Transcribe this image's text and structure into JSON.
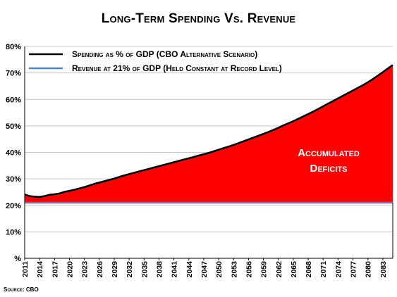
{
  "chart_data": {
    "type": "area",
    "title": "Long-Term Spending Vs. Revenue",
    "source": "Source: CBO",
    "ylim": [
      0,
      80
    ],
    "y_ticks": [
      0,
      10,
      20,
      30,
      40,
      50,
      60,
      70,
      80
    ],
    "y_tick_labels": [
      "%",
      "10%",
      "20%",
      "30%",
      "40%",
      "50%",
      "60%",
      "70%",
      "80%"
    ],
    "x_range": [
      2011,
      2085
    ],
    "x_tick_labels": [
      "2011",
      "2014",
      "2017",
      "2020",
      "2023",
      "2026",
      "2029",
      "2032",
      "2035",
      "2038",
      "2041",
      "2044",
      "2047",
      "2050",
      "2053",
      "2056",
      "2059",
      "2062",
      "2065",
      "2068",
      "2071",
      "2074",
      "2077",
      "2080",
      "2083"
    ],
    "grid": "horizontal",
    "legend_placement": "top-left",
    "series": [
      {
        "name": "Spending as % of GDP (CBO Alternative Scenario)",
        "color": "#000000",
        "x": [
          2011,
          2012,
          2013,
          2014,
          2015,
          2016,
          2017,
          2018,
          2019,
          2020,
          2021,
          2022,
          2023,
          2024,
          2025,
          2026,
          2027,
          2028,
          2029,
          2030,
          2031,
          2032,
          2033,
          2034,
          2035,
          2036,
          2037,
          2038,
          2039,
          2040,
          2041,
          2042,
          2043,
          2044,
          2045,
          2046,
          2047,
          2048,
          2049,
          2050,
          2051,
          2052,
          2053,
          2054,
          2055,
          2056,
          2057,
          2058,
          2059,
          2060,
          2061,
          2062,
          2063,
          2064,
          2065,
          2066,
          2067,
          2068,
          2069,
          2070,
          2071,
          2072,
          2073,
          2074,
          2075,
          2076,
          2077,
          2078,
          2079,
          2080,
          2081,
          2082,
          2083,
          2084,
          2085
        ],
        "values": [
          24.1,
          23.5,
          23.3,
          23.2,
          23.5,
          24.0,
          24.2,
          24.5,
          25.1,
          25.5,
          25.9,
          26.4,
          26.9,
          27.5,
          28.1,
          28.6,
          29.1,
          29.6,
          30.1,
          30.7,
          31.3,
          31.8,
          32.3,
          32.8,
          33.3,
          33.8,
          34.3,
          34.8,
          35.3,
          35.8,
          36.3,
          36.8,
          37.3,
          37.8,
          38.3,
          38.8,
          39.3,
          39.8,
          40.4,
          41.0,
          41.6,
          42.2,
          42.8,
          43.5,
          44.2,
          44.9,
          45.6,
          46.3,
          47.0,
          47.7,
          48.5,
          49.3,
          50.2,
          51.0,
          51.8,
          52.7,
          53.6,
          54.5,
          55.4,
          56.4,
          57.4,
          58.4,
          59.4,
          60.4,
          61.4,
          62.4,
          63.4,
          64.4,
          65.4,
          66.5,
          67.7,
          69.0,
          70.3,
          71.7,
          73.0
        ]
      },
      {
        "name": "Revenue at 21% of GDP (Held Constant at Record Level)",
        "color": "#4f81bd",
        "x": [
          2011,
          2085
        ],
        "values": [
          21,
          21
        ]
      }
    ],
    "annotations": [
      {
        "text_line1": "Accumulated",
        "text_line2": "Deficits",
        "color": "#ffffff"
      }
    ],
    "area_fill_color": "#ff0000"
  }
}
